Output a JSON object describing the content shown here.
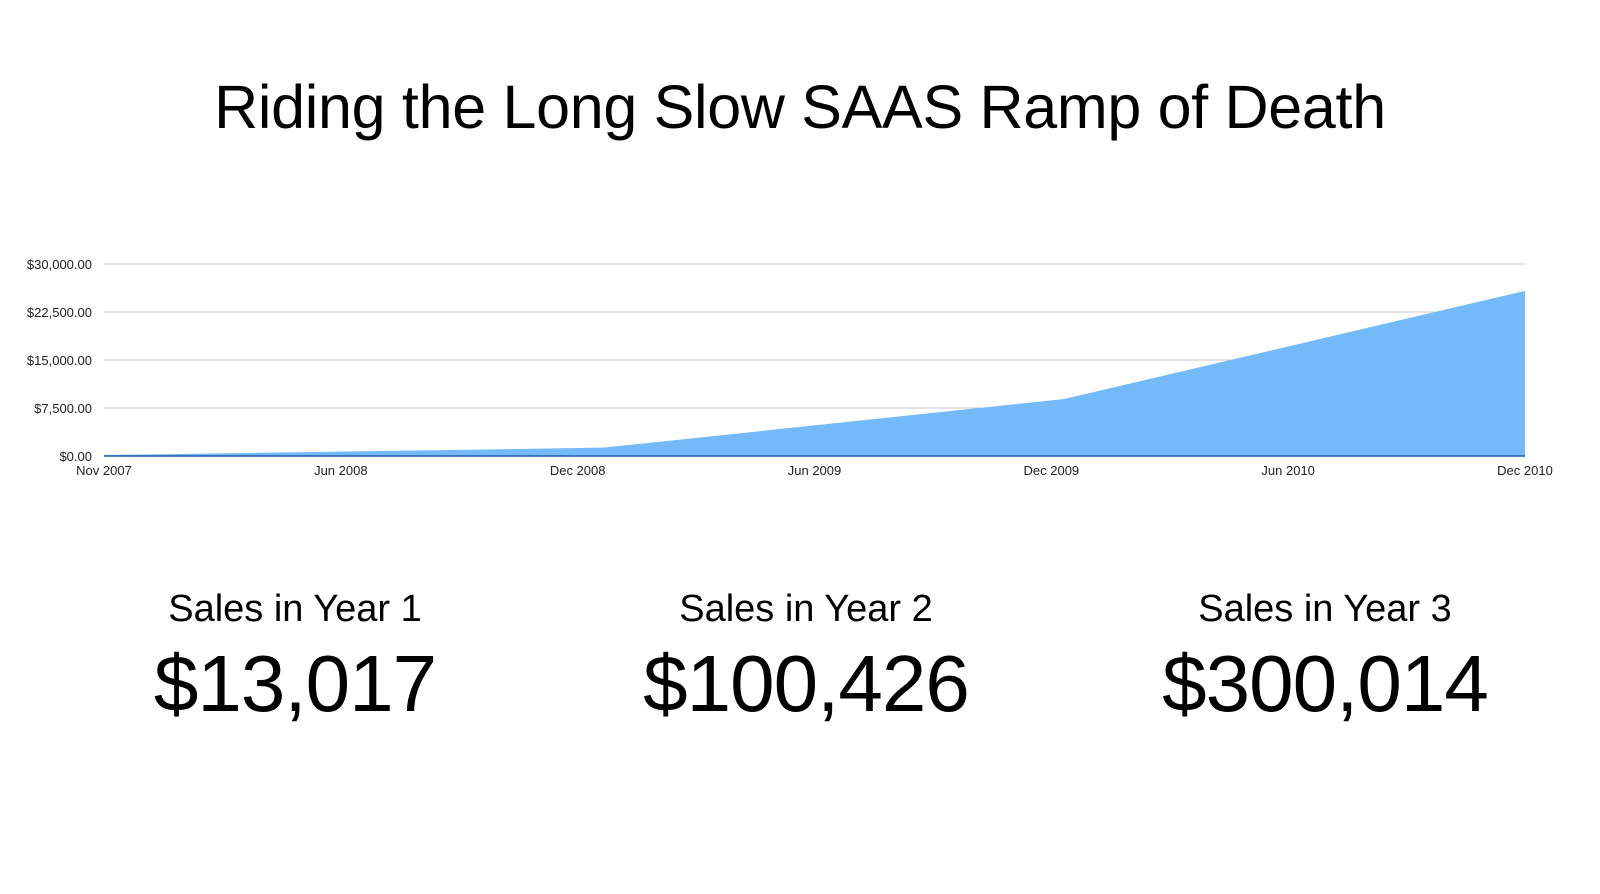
{
  "title": "Riding the Long Slow SAAS Ramp of Death",
  "chart_data": {
    "type": "area",
    "x_tick_labels": [
      "Nov 2007",
      "Jun 2008",
      "Dec 2008",
      "Jun 2009",
      "Dec 2009",
      "Jun 2010",
      "Dec 2010"
    ],
    "y_tick_labels": [
      "$0.00",
      "$7,500.00",
      "$15,000.00",
      "$22,500.00",
      "$30,000.00"
    ],
    "ylim": [
      0,
      30000
    ],
    "xlim": [
      "2007-11",
      "2010-12"
    ],
    "grid": true,
    "fill_color": "#74baf8",
    "baseline_color": "#1e5fa8",
    "series": [
      {
        "points": [
          {
            "x": "2007-11",
            "y": 150
          },
          {
            "x": "2008-12",
            "y": 1300
          },
          {
            "x": "2009-12",
            "y": 8900
          },
          {
            "x": "2010-12",
            "y": 25800
          }
        ]
      }
    ]
  },
  "stats": [
    {
      "label": "Sales in Year 1",
      "value": "$13,017"
    },
    {
      "label": "Sales in Year 2",
      "value": "$100,426"
    },
    {
      "label": "Sales in Year 3",
      "value": "$300,014"
    }
  ]
}
